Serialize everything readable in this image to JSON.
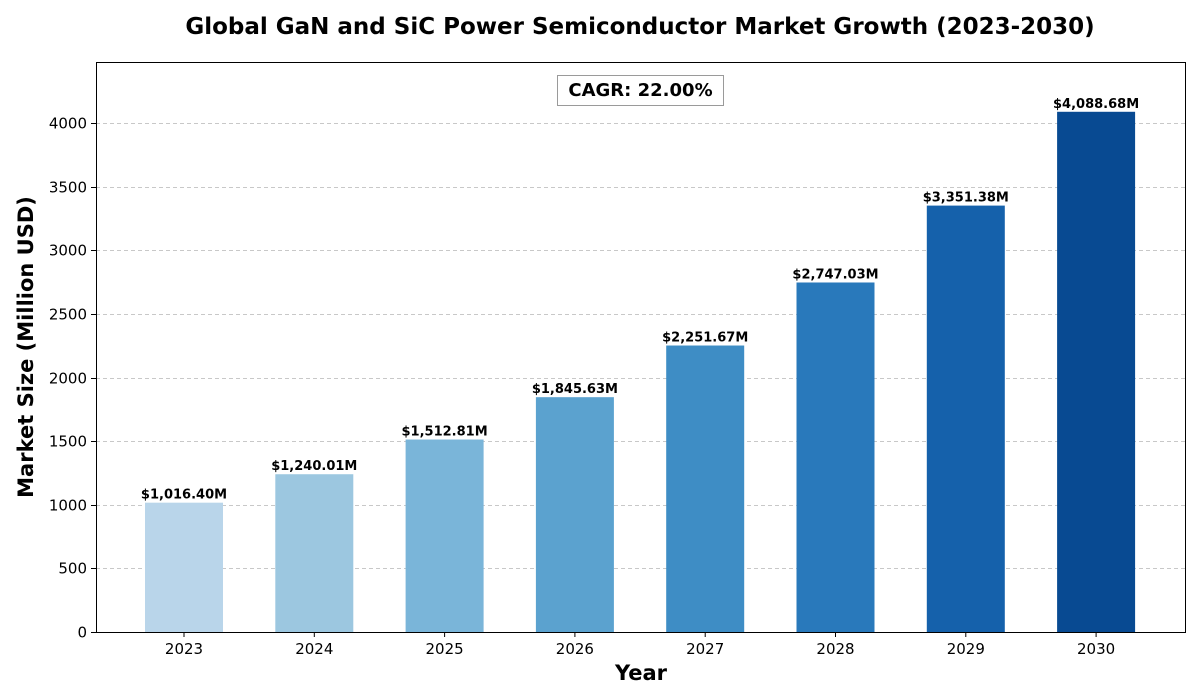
{
  "chart_data": {
    "type": "bar",
    "title": "Global GaN and SiC Power Semiconductor Market Growth (2023-2030)",
    "xlabel": "Year",
    "ylabel": "Market Size (Million USD)",
    "categories": [
      "2023",
      "2024",
      "2025",
      "2026",
      "2027",
      "2028",
      "2029",
      "2030"
    ],
    "values": [
      1016.4,
      1240.01,
      1512.81,
      1845.63,
      2251.67,
      2747.03,
      3351.38,
      4088.68
    ],
    "data_labels": [
      "$1,016.40M",
      "$1,240.01M",
      "$1,512.81M",
      "$1,845.63M",
      "$2,251.67M",
      "$2,747.03M",
      "$3,351.38M",
      "$4,088.68M"
    ],
    "bar_colors": [
      "#b9d5ea",
      "#9cc7e0",
      "#7ab5d9",
      "#5ba2cf",
      "#3e8dc5",
      "#2979bb",
      "#1561ab",
      "#084a92"
    ],
    "yticks": [
      0,
      500,
      1000,
      1500,
      2000,
      2500,
      3000,
      3500,
      4000
    ],
    "ylim": [
      0,
      4480
    ],
    "grid": true,
    "annotation": "CAGR: 22.00%",
    "annotation_placement": "top-center"
  }
}
